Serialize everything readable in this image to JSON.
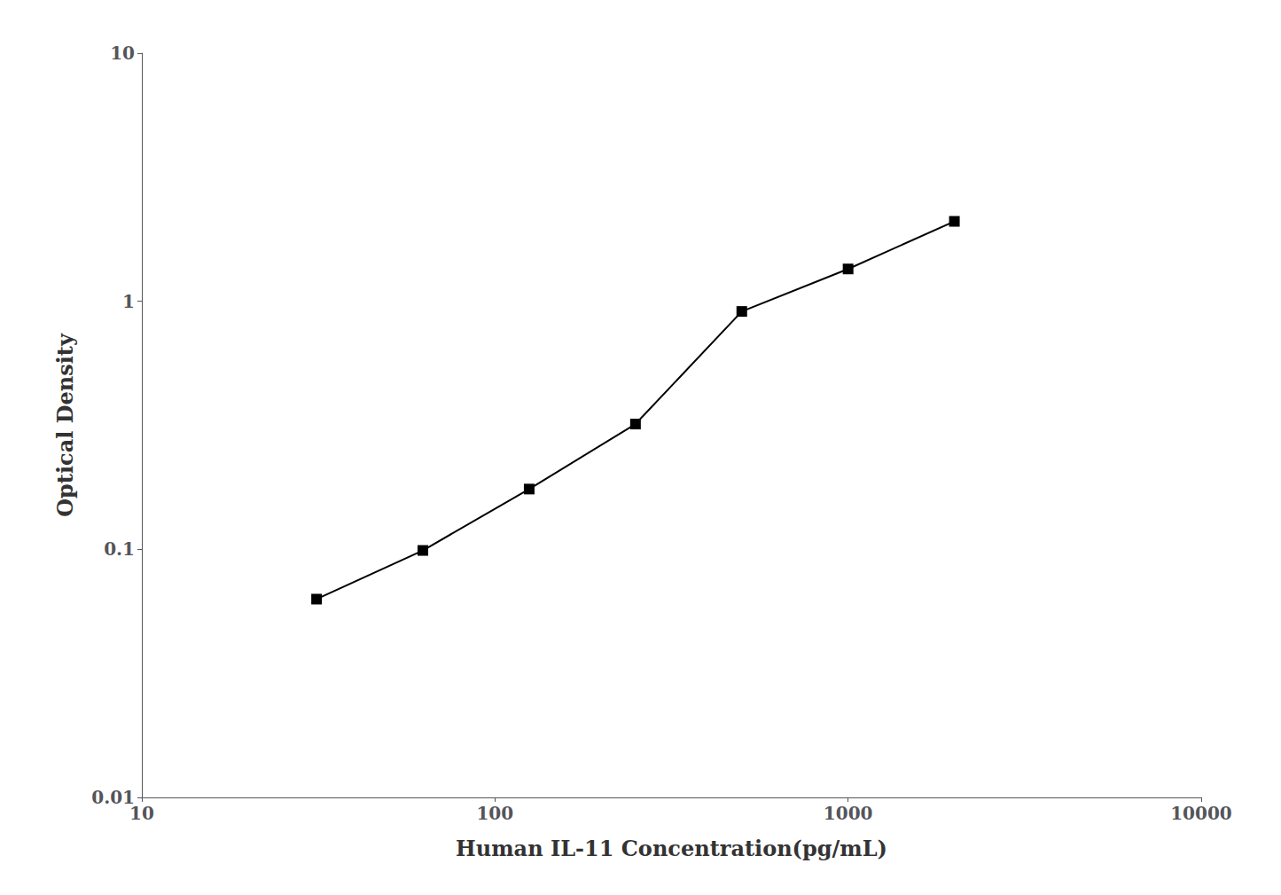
{
  "chart_data": {
    "type": "line",
    "xlabel": "Human IL-11 Concentration(pg/mL)",
    "ylabel": "Optical Density",
    "x": [
      31.25,
      62.5,
      125,
      250,
      500,
      1000,
      2000
    ],
    "values": [
      0.063,
      0.099,
      0.175,
      0.32,
      0.91,
      1.35,
      2.1
    ],
    "color": "#000000",
    "marker": "square",
    "log": true,
    "xlim": [
      10,
      10000
    ],
    "ylim": [
      0.01,
      10
    ],
    "xticks": [
      10,
      100,
      1000,
      10000
    ],
    "yticks": [
      0.01,
      0.1,
      1,
      10
    ],
    "grid": false
  }
}
